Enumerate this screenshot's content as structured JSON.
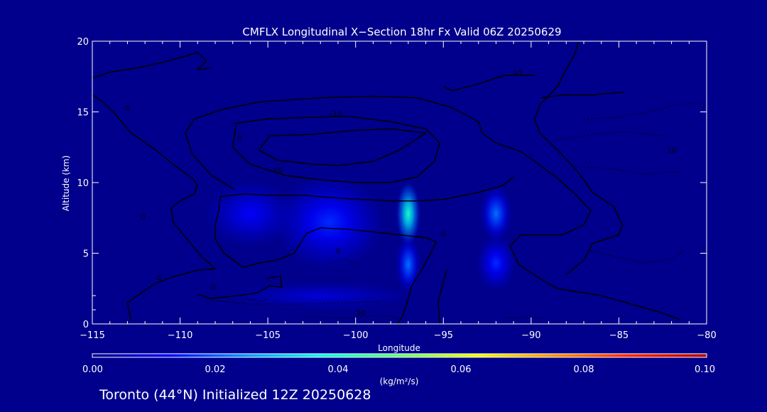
{
  "chart_data": {
    "type": "heatmap",
    "title": "CMFLX Longitudinal X−Section 18hr  Fx Valid 06Z 20250629",
    "xlabel": "Longitude",
    "ylabel": "Altitude (km)",
    "xlim": [
      -115,
      -80
    ],
    "ylim": [
      0,
      20
    ],
    "x_ticks": [
      -115,
      -110,
      -105,
      -100,
      -95,
      -90,
      -85,
      -80
    ],
    "x_tick_labels": [
      "−115",
      "−110",
      "−105",
      "−100",
      "−95",
      "−90",
      "−85",
      "−80"
    ],
    "y_ticks": [
      0,
      5,
      10,
      15,
      20
    ],
    "y_tick_labels": [
      "0",
      "5",
      "10",
      "15",
      "20"
    ],
    "colorbar": {
      "label": "(kg/m²/s)",
      "range": [
        0,
        0.1
      ],
      "ticks": [
        0,
        0.02,
        0.04,
        0.06,
        0.08,
        0.1
      ],
      "tick_labels": [
        "0.00",
        "0.02",
        "0.04",
        "0.06",
        "0.08",
        "0.10"
      ],
      "colormap": [
        "#00008c",
        "#0000ff",
        "#0096ff",
        "#00ffe0",
        "#60ff70",
        "#f0ff00",
        "#ff9000",
        "#ff2000",
        "#b00000"
      ]
    },
    "field_blobs": [
      {
        "lon": -106,
        "alt": 7.8,
        "value": 0.012,
        "spread_lon": 2.6,
        "spread_alt": 2.4
      },
      {
        "lon": -101.5,
        "alt": 7.2,
        "value": 0.016,
        "spread_lon": 3.2,
        "spread_alt": 3.4
      },
      {
        "lon": -97,
        "alt": 7.8,
        "value": 0.04,
        "spread_lon": 0.7,
        "spread_alt": 2.3
      },
      {
        "lon": -97,
        "alt": 4.2,
        "value": 0.022,
        "spread_lon": 0.7,
        "spread_alt": 2.0
      },
      {
        "lon": -92,
        "alt": 7.8,
        "value": 0.022,
        "spread_lon": 0.9,
        "spread_alt": 2.0
      },
      {
        "lon": -92,
        "alt": 4.3,
        "value": 0.016,
        "spread_lon": 1.1,
        "spread_alt": 2.0
      },
      {
        "lon": -102,
        "alt": 2.0,
        "value": 0.008,
        "spread_lon": 5.5,
        "spread_alt": 1.0
      }
    ],
    "contours": [
      {
        "level": 0,
        "style": "solid",
        "points": [
          [
            -112.8,
            0.2
          ],
          [
            -113.0,
            1.5
          ],
          [
            -112.2,
            2.2
          ],
          [
            -111.5,
            2.8
          ],
          [
            -110.5,
            3.3
          ],
          [
            -109.0,
            3.8
          ],
          [
            -108.0,
            3.9
          ],
          [
            -108.8,
            4.8
          ],
          [
            -109.6,
            6.0
          ],
          [
            -110.4,
            7.2
          ],
          [
            -110.5,
            8.2
          ],
          [
            -110.0,
            8.7
          ],
          [
            -109.2,
            9.2
          ],
          [
            -109.0,
            9.8
          ],
          [
            -109.3,
            10.3
          ],
          [
            -110.3,
            11.2
          ],
          [
            -111.5,
            12.4
          ],
          [
            -112.8,
            13.5
          ],
          [
            -113.8,
            15.0
          ],
          [
            -114.5,
            15.8
          ],
          [
            -115.0,
            16.2
          ]
        ]
      },
      {
        "level": 0,
        "style": "solid",
        "points": [
          [
            -115.0,
            17.4
          ],
          [
            -114.0,
            17.8
          ],
          [
            -112.5,
            18.1
          ],
          [
            -111.0,
            18.5
          ],
          [
            -109.8,
            18.9
          ],
          [
            -109.0,
            19.2
          ],
          [
            -108.5,
            18.6
          ],
          [
            -109.0,
            18.0
          ],
          [
            -108.2,
            18.1
          ]
        ]
      },
      {
        "level": -10,
        "style": "solid",
        "points": [
          [
            -106.9,
            9.5
          ],
          [
            -108.2,
            10.5
          ],
          [
            -109.3,
            12.0
          ],
          [
            -109.7,
            13.5
          ],
          [
            -109.2,
            14.5
          ],
          [
            -107.5,
            15.2
          ],
          [
            -105.5,
            15.7
          ],
          [
            -102.0,
            16.0
          ],
          [
            -99.0,
            16.1
          ],
          [
            -96.5,
            16.0
          ],
          [
            -94.5,
            15.3
          ],
          [
            -93.0,
            14.3
          ],
          [
            -92.8,
            13.5
          ],
          [
            -92.0,
            12.8
          ],
          [
            -90.6,
            12.2
          ],
          [
            -89.8,
            11.5
          ],
          [
            -88.5,
            10.3
          ],
          [
            -87.5,
            9.2
          ],
          [
            -86.6,
            8.0
          ],
          [
            -87.0,
            7.0
          ],
          [
            -88.2,
            6.3
          ],
          [
            -90.6,
            6.3
          ],
          [
            -91.2,
            5.5
          ],
          [
            -90.7,
            4.2
          ],
          [
            -89.5,
            3.2
          ],
          [
            -88.5,
            2.5
          ],
          [
            -86.0,
            2.0
          ],
          [
            -84.0,
            1.3
          ],
          [
            -82.6,
            0.8
          ],
          [
            -81.5,
            0.3
          ]
        ]
      },
      {
        "level": -10,
        "style": "solid",
        "points": [
          [
            -106.8,
            14.2
          ],
          [
            -107.0,
            12.5
          ],
          [
            -106.0,
            11.3
          ],
          [
            -104.0,
            10.5
          ],
          [
            -102.0,
            10.2
          ],
          [
            -100.0,
            10.0
          ],
          [
            -98.0,
            10.0
          ],
          [
            -96.5,
            10.4
          ],
          [
            -95.5,
            11.5
          ],
          [
            -95.2,
            12.8
          ],
          [
            -96.0,
            13.8
          ],
          [
            -98.0,
            14.3
          ],
          [
            -100.5,
            14.7
          ],
          [
            -103.0,
            14.6
          ],
          [
            -105.0,
            14.5
          ],
          [
            -106.8,
            14.2
          ]
        ]
      },
      {
        "level": -20,
        "style": "solid",
        "points": [
          [
            -104.9,
            13.3
          ],
          [
            -105.5,
            12.3
          ],
          [
            -104.5,
            11.6
          ],
          [
            -102.5,
            11.3
          ],
          [
            -101.0,
            11.2
          ],
          [
            -99.0,
            11.5
          ],
          [
            -97.5,
            12.3
          ],
          [
            -96.0,
            13.5
          ],
          [
            -98.0,
            13.8
          ],
          [
            -100.0,
            13.7
          ],
          [
            -102.5,
            13.4
          ],
          [
            -104.9,
            13.3
          ]
        ]
      },
      {
        "level": 0,
        "style": "solid",
        "points": [
          [
            -105.1,
            3.2
          ],
          [
            -104.3,
            3.4
          ],
          [
            -104.2,
            2.6
          ],
          [
            -104.9,
            2.7
          ],
          [
            -105.6,
            2.2
          ],
          [
            -106.7,
            2.0
          ],
          [
            -108.3,
            1.8
          ],
          [
            -109.0,
            2.1
          ]
        ]
      },
      {
        "level": -10,
        "style": "solid",
        "points": [
          [
            -106.4,
            4.0
          ],
          [
            -107.5,
            5.0
          ],
          [
            -108.0,
            6.0
          ],
          [
            -108.0,
            7.0
          ],
          [
            -107.8,
            8.0
          ],
          [
            -107.7,
            9.0
          ],
          [
            -106.3,
            9.2
          ],
          [
            -105.0,
            9.1
          ],
          [
            -103.0,
            9.1
          ],
          [
            -101.0,
            8.9
          ],
          [
            -99.5,
            8.8
          ],
          [
            -98.0,
            8.7
          ],
          [
            -96.5,
            8.7
          ],
          [
            -95.0,
            8.8
          ],
          [
            -93.0,
            9.3
          ],
          [
            -91.6,
            9.8
          ],
          [
            -91.0,
            10.4
          ]
        ]
      },
      {
        "level": -10,
        "style": "solid",
        "points": [
          [
            -106.4,
            4.0
          ],
          [
            -105.5,
            4.3
          ],
          [
            -104.5,
            4.5
          ],
          [
            -103.5,
            5.0
          ],
          [
            -102.8,
            6.4
          ],
          [
            -102.0,
            6.8
          ],
          [
            -100.5,
            6.7
          ],
          [
            -99.0,
            6.5
          ],
          [
            -97.5,
            6.3
          ],
          [
            -96.0,
            6.1
          ],
          [
            -95.4,
            5.8
          ],
          [
            -95.8,
            4.8
          ],
          [
            -96.3,
            3.7
          ],
          [
            -96.8,
            2.7
          ],
          [
            -97.0,
            1.8
          ],
          [
            -97.3,
            0.6
          ],
          [
            -97.6,
            0.0
          ]
        ]
      },
      {
        "level": 10,
        "style": "solid",
        "points": [
          [
            -95.2,
            0.0
          ],
          [
            -95.3,
            1.5
          ],
          [
            -95.0,
            3.0
          ],
          [
            -94.8,
            3.8
          ]
        ]
      },
      {
        "level": 0,
        "style": "solid",
        "points": [
          [
            -88.0,
            3.5
          ],
          [
            -87.0,
            4.5
          ],
          [
            -86.5,
            5.7
          ],
          [
            -85.0,
            6.3
          ],
          [
            -84.8,
            7.0
          ],
          [
            -85.3,
            8.3
          ],
          [
            -86.5,
            9.3
          ],
          [
            -87.0,
            10.2
          ],
          [
            -87.5,
            11.0
          ],
          [
            -88.5,
            12.3
          ],
          [
            -89.5,
            13.5
          ],
          [
            -89.8,
            14.5
          ],
          [
            -89.5,
            15.5
          ],
          [
            -88.5,
            16.8
          ],
          [
            -88.0,
            18.0
          ],
          [
            -87.5,
            19.1
          ],
          [
            -87.3,
            20.0
          ]
        ]
      },
      {
        "level": 10,
        "style": "solid",
        "points": [
          [
            -89.4,
            16.0
          ],
          [
            -88.2,
            16.2
          ],
          [
            -86.5,
            16.2
          ],
          [
            -84.7,
            16.4
          ]
        ]
      },
      {
        "level": 10,
        "style": "solid",
        "points": [
          [
            -95.0,
            16.8
          ],
          [
            -94.5,
            16.5
          ],
          [
            -93.2,
            16.9
          ],
          [
            -91.5,
            17.6
          ],
          [
            -89.8,
            17.6
          ]
        ]
      },
      {
        "level": 10,
        "style": "dashed",
        "points": [
          [
            -87.0,
            14.5
          ],
          [
            -85.2,
            14.6
          ],
          [
            -83.2,
            15.0
          ],
          [
            -81.8,
            15.5
          ],
          [
            -80.8,
            15.6
          ],
          [
            -80.0,
            15.5
          ]
        ]
      },
      {
        "level": 10,
        "style": "dashed",
        "points": [
          [
            -88.6,
            13.0
          ],
          [
            -86.5,
            13.4
          ],
          [
            -84.5,
            13.6
          ],
          [
            -82.5,
            13.3
          ]
        ]
      },
      {
        "level": 10,
        "style": "dashed",
        "points": [
          [
            -87.2,
            11.1
          ],
          [
            -85.5,
            11.0
          ],
          [
            -83.5,
            10.6
          ],
          [
            -81.5,
            10.8
          ]
        ]
      },
      {
        "level": 10,
        "style": "dashed",
        "points": [
          [
            -86.8,
            5.2
          ],
          [
            -85.0,
            4.7
          ],
          [
            -83.5,
            4.3
          ],
          [
            -82.0,
            4.6
          ],
          [
            -81.3,
            5.2
          ]
        ]
      },
      {
        "level": 10,
        "style": "dashed",
        "points": [
          [
            -101.4,
            4.3
          ],
          [
            -100.6,
            4.6
          ],
          [
            -100.0,
            4.2
          ]
        ]
      },
      {
        "level": 10,
        "style": "dashed",
        "points": [
          [
            -108.5,
            1.7
          ],
          [
            -106.0,
            1.4
          ],
          [
            -103.0,
            1.4
          ],
          [
            -100.5,
            1.5
          ],
          [
            -98.5,
            1.6
          ]
        ]
      },
      {
        "level": 10,
        "style": "dashed",
        "points": [
          [
            -103.0,
            0.5
          ],
          [
            -100.5,
            0.4
          ],
          [
            -98.5,
            0.6
          ],
          [
            -97.4,
            0.4
          ]
        ]
      },
      {
        "level": 10,
        "style": "dashed",
        "points": [
          [
            -91.5,
            0.4
          ],
          [
            -90.3,
            0.5
          ],
          [
            -89.3,
            0.4
          ]
        ]
      },
      {
        "level": 0,
        "style": "dashed",
        "points": [
          [
            -106.2,
            1.8
          ],
          [
            -105.4,
            1.6
          ],
          [
            -104.9,
            1.8
          ]
        ]
      }
    ],
    "contour_labels": [
      {
        "text": "0",
        "lon": -113.0,
        "alt": 15.1
      },
      {
        "text": "0",
        "lon": -111.2,
        "alt": 3.1
      },
      {
        "text": "0",
        "lon": -108.1,
        "alt": 2.4
      },
      {
        "text": "0",
        "lon": -95.0,
        "alt": 6.2
      },
      {
        "text": "0",
        "lon": -101.0,
        "alt": 5.0
      },
      {
        "text": "0",
        "lon": -106.6,
        "alt": 13.0
      },
      {
        "text": "0",
        "lon": -112.1,
        "alt": 7.4
      },
      {
        "text": "−10",
        "lon": -101.2,
        "alt": 14.7
      },
      {
        "text": "−10",
        "lon": -104.6,
        "alt": 10.7
      },
      {
        "text": "10",
        "lon": -90.8,
        "alt": 17.6
      },
      {
        "text": "10",
        "lon": -82.0,
        "alt": 12.1
      },
      {
        "text": "10",
        "lon": -99.7,
        "alt": 0.6
      }
    ]
  },
  "footer": {
    "station": "Toronto (44°N) Initialized 12Z 20250628"
  }
}
